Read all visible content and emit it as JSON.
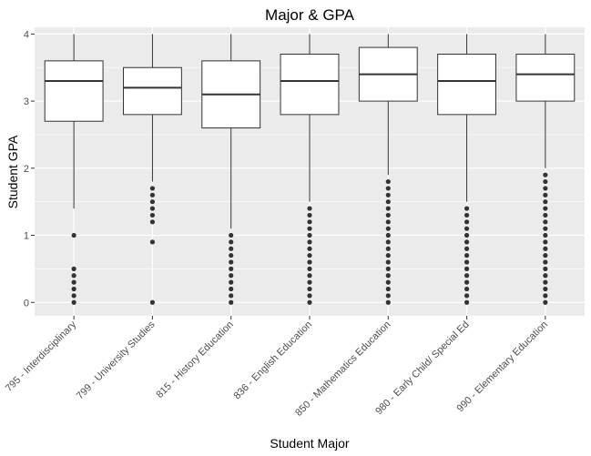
{
  "chart_data": {
    "type": "boxplot",
    "title": "Major & GPA",
    "xlabel": "Student Major",
    "ylabel": "Student GPA",
    "ylim": [
      -0.2,
      4.1
    ],
    "yticks": [
      0,
      1,
      2,
      3,
      4
    ],
    "grid": true,
    "categories": [
      "795 - Interdisciplinary",
      "799 - University Studies",
      "815 - History Education",
      "836 - English Education",
      "850 - Mathematics Education",
      "980 - Early Child/ Special Ed",
      "990 - Elementary Education"
    ],
    "boxes": [
      {
        "whisker_low": 1.4,
        "q1": 2.7,
        "median": 3.3,
        "q3": 3.6,
        "whisker_high": 4.0,
        "outliers": [
          0,
          0.1,
          0.2,
          0.3,
          0.4,
          0.5,
          1.0
        ]
      },
      {
        "whisker_low": 1.8,
        "q1": 2.8,
        "median": 3.2,
        "q3": 3.5,
        "whisker_high": 4.0,
        "outliers": [
          0,
          0.9,
          1.2,
          1.3,
          1.4,
          1.5,
          1.6,
          1.7
        ]
      },
      {
        "whisker_low": 1.1,
        "q1": 2.6,
        "median": 3.1,
        "q3": 3.6,
        "whisker_high": 4.0,
        "outliers": [
          0,
          0.1,
          0.2,
          0.3,
          0.4,
          0.5,
          0.6,
          0.7,
          0.8,
          0.9,
          1.0
        ]
      },
      {
        "whisker_low": 1.5,
        "q1": 2.8,
        "median": 3.3,
        "q3": 3.7,
        "whisker_high": 4.0,
        "outliers": [
          0,
          0.1,
          0.2,
          0.3,
          0.4,
          0.5,
          0.6,
          0.7,
          0.8,
          0.9,
          1.0,
          1.1,
          1.2,
          1.3,
          1.4
        ]
      },
      {
        "whisker_low": 1.9,
        "q1": 3.0,
        "median": 3.4,
        "q3": 3.8,
        "whisker_high": 4.0,
        "outliers": [
          0,
          0.1,
          0.2,
          0.3,
          0.4,
          0.5,
          0.6,
          0.7,
          0.8,
          0.9,
          1.0,
          1.1,
          1.2,
          1.3,
          1.4,
          1.5,
          1.6,
          1.7,
          1.8
        ]
      },
      {
        "whisker_low": 1.5,
        "q1": 2.8,
        "median": 3.3,
        "q3": 3.7,
        "whisker_high": 4.0,
        "outliers": [
          0,
          0.1,
          0.2,
          0.3,
          0.4,
          0.5,
          0.6,
          0.7,
          0.8,
          0.9,
          1.0,
          1.1,
          1.2,
          1.3,
          1.4
        ]
      },
      {
        "whisker_low": 2.0,
        "q1": 3.0,
        "median": 3.4,
        "q3": 3.7,
        "whisker_high": 4.0,
        "outliers": [
          0,
          0.1,
          0.2,
          0.3,
          0.4,
          0.5,
          0.6,
          0.7,
          0.8,
          0.9,
          1.0,
          1.1,
          1.2,
          1.3,
          1.4,
          1.5,
          1.6,
          1.7,
          1.8,
          1.9
        ]
      }
    ],
    "colors": {
      "panel_bg": "#ebebeb",
      "grid_major": "#ffffff",
      "box_fill": "#ffffff",
      "box_stroke": "#333333",
      "outlier": "#333333",
      "tick_text": "#4d4d4d"
    }
  }
}
